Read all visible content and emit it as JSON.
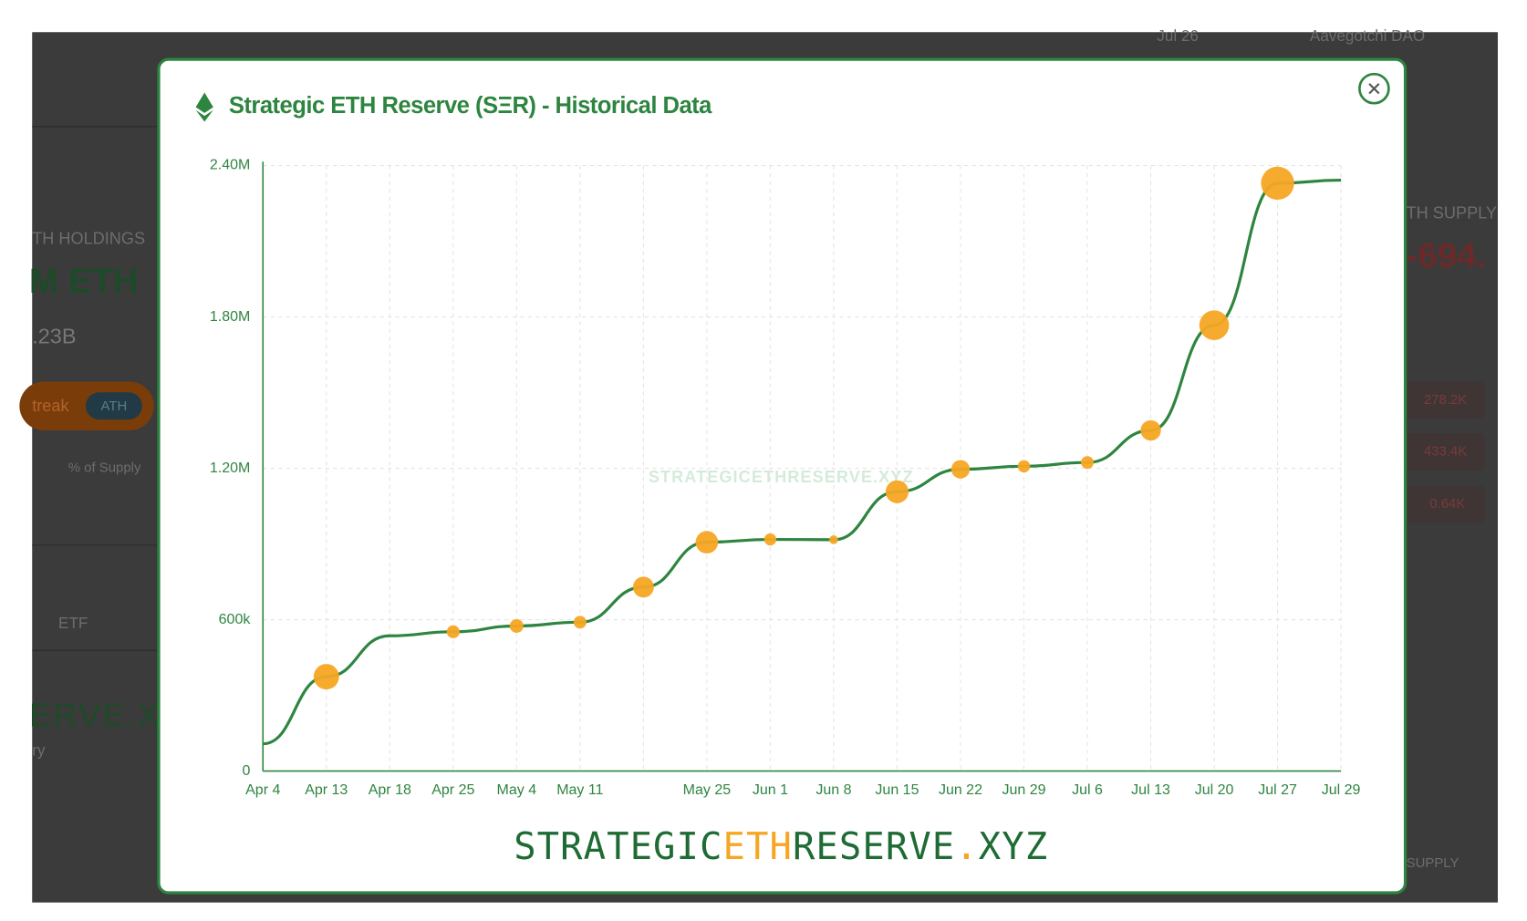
{
  "background": {
    "top_date": "Jul 26",
    "top_name": "Aavegotchi DAO",
    "left_label": "TH HOLDINGS",
    "left_value": "M ETH",
    "left_sub": ".23B",
    "badge": "treak",
    "badge_ath": "ATH",
    "supply_label": "% of Supply",
    "tab": "ETF",
    "brand_partial": "ERVE.X",
    "brand_sub": "ry",
    "right_label": "TH SUPPLY",
    "right_value": "-694.",
    "right_items": [
      "278.2K",
      "433.4K",
      "0.64K"
    ],
    "right_footer": "SUPPLY"
  },
  "modal": {
    "title": "Strategic ETH Reserve (SΞR) - Historical Data",
    "watermark": "STRATEGICETHRESERVE.XYZ",
    "logo": [
      "STRATEGIC",
      "ETH",
      "RESERVE",
      ".",
      "XYZ"
    ]
  },
  "chart_data": {
    "type": "line",
    "color": "#2e8540",
    "marker_color": "#f5a623",
    "categories": [
      "Apr 4",
      "Apr 13",
      "Apr 18",
      "Apr 25",
      "May 4",
      "May 11",
      null,
      "May 25",
      "Jun 1",
      "Jun 8",
      "Jun 15",
      "Jun 22",
      "Jun 29",
      "Jul 6",
      "Jul 13",
      "Jul 20",
      "Jul 27",
      "Jul 29"
    ],
    "values": [
      108000,
      374000,
      536000,
      552000,
      575000,
      590000,
      729000,
      907000,
      918000,
      917000,
      1107000,
      1196000,
      1208000,
      1223000,
      1350000,
      1767000,
      2330000,
      2342000
    ],
    "markers": [
      false,
      true,
      false,
      true,
      true,
      true,
      true,
      true,
      true,
      true,
      true,
      true,
      true,
      true,
      true,
      true,
      true,
      false
    ],
    "ylim": [
      0,
      2400000
    ],
    "yticks": [
      0,
      {
        "value": 600000,
        "label": "600k"
      },
      {
        "value": 1200000,
        "label": "1.20M"
      },
      {
        "value": 1800000,
        "label": "1.80M"
      },
      {
        "value": 2400000,
        "label": "2.40M"
      }
    ],
    "grid": true
  }
}
